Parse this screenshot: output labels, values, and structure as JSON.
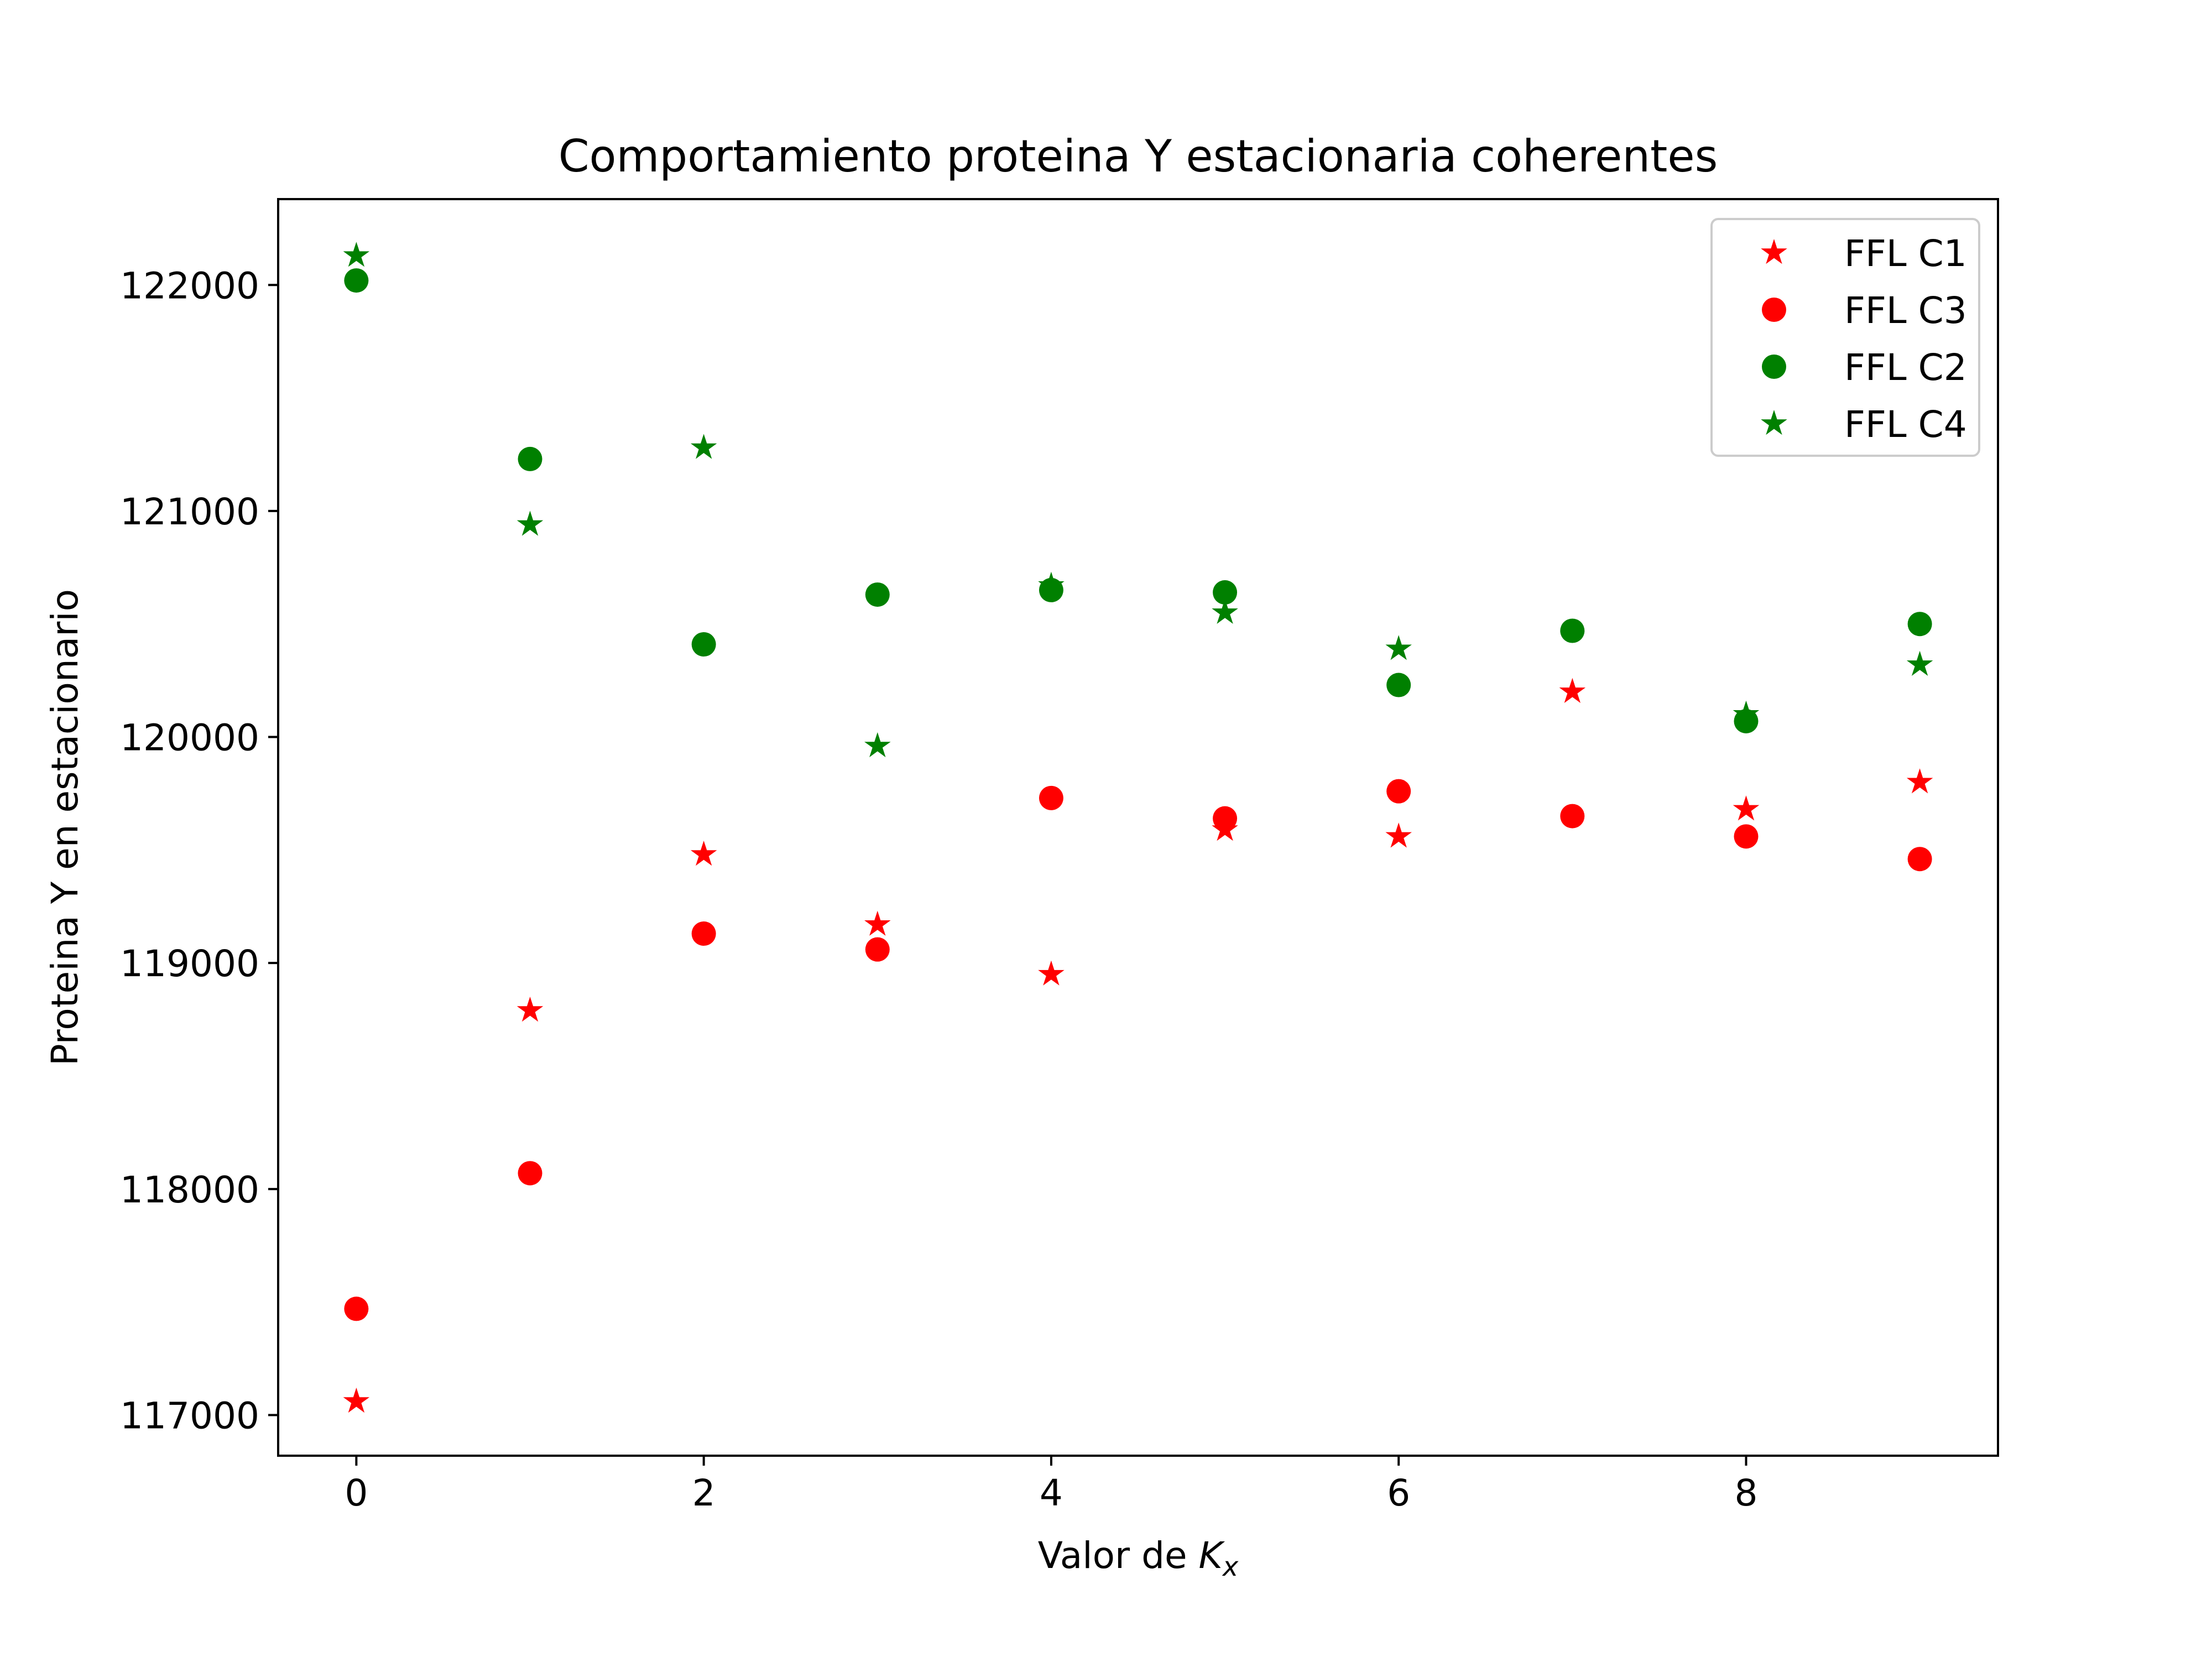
{
  "chart_data": {
    "type": "scatter",
    "title": "Comportamiento proteina Y estacionaria coherentes",
    "xlabel": "Valor de ",
    "xlabel_symbol": "K",
    "xlabel_subscript": "x",
    "ylabel": "Proteina Y en estacionario",
    "xlim": [
      -0.45,
      9.45
    ],
    "ylim": [
      116820,
      122380
    ],
    "xticks": [
      0,
      2,
      4,
      6,
      8
    ],
    "xtick_labels": [
      "0",
      "2",
      "4",
      "6",
      "8"
    ],
    "yticks": [
      117000,
      118000,
      119000,
      120000,
      121000,
      122000
    ],
    "ytick_labels": [
      "117000",
      "118000",
      "119000",
      "120000",
      "121000",
      "122000"
    ],
    "grid": false,
    "legend_position": "top-right",
    "x": [
      0,
      1,
      2,
      3,
      4,
      5,
      6,
      7,
      8,
      9
    ],
    "series": [
      {
        "name": "FFL C1",
        "marker": "star",
        "color": "#ff0000",
        "values": [
          117060,
          118790,
          119480,
          119170,
          118950,
          119590,
          119560,
          120200,
          119680,
          119800
        ]
      },
      {
        "name": "FFL C3",
        "marker": "circle",
        "color": "#ff0000",
        "values": [
          117470,
          118070,
          119130,
          119060,
          119730,
          119640,
          119760,
          119650,
          119560,
          119460
        ]
      },
      {
        "name": "FFL C2",
        "marker": "circle",
        "color": "#008000",
        "values": [
          122020,
          121230,
          120410,
          120630,
          120650,
          120640,
          120230,
          120470,
          120070,
          120500
        ]
      },
      {
        "name": "FFL C4",
        "marker": "star",
        "color": "#008000",
        "values": [
          122130,
          120940,
          121280,
          119960,
          120670,
          120550,
          120390,
          null,
          120100,
          120320
        ]
      }
    ]
  }
}
